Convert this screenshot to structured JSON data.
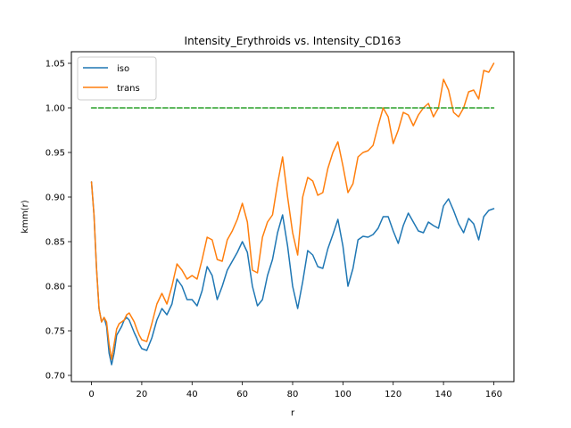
{
  "chart_data": {
    "type": "line",
    "title": "Intensity_Erythroids vs. Intensity_CD163",
    "xlabel": "r",
    "ylabel": "kmm(r)",
    "xlim": [
      -8,
      168
    ],
    "ylim": [
      0.693,
      1.063
    ],
    "x_ticks": [
      0,
      20,
      40,
      60,
      80,
      100,
      120,
      140,
      160
    ],
    "x_tick_labels": [
      "0",
      "20",
      "40",
      "60",
      "80",
      "100",
      "120",
      "140",
      "160"
    ],
    "y_ticks": [
      0.7,
      0.75,
      0.8,
      0.85,
      0.9,
      0.95,
      1.0,
      1.05
    ],
    "y_tick_labels": [
      "0.70",
      "0.75",
      "0.80",
      "0.85",
      "0.90",
      "0.95",
      "1.00",
      "1.05"
    ],
    "grid": false,
    "legend_position": "top-left",
    "series": [
      {
        "name": "iso",
        "color": "#1f77b4",
        "style": "solid",
        "x": [
          0,
          1,
          2,
          3,
          4,
          5,
          6,
          7,
          8,
          9,
          10,
          11,
          12,
          13,
          14,
          15,
          16,
          17,
          18,
          19,
          20,
          22,
          24,
          26,
          28,
          30,
          32,
          34,
          36,
          38,
          40,
          42,
          44,
          46,
          48,
          50,
          52,
          54,
          56,
          58,
          60,
          62,
          64,
          66,
          68,
          70,
          72,
          74,
          76,
          78,
          80,
          82,
          84,
          86,
          88,
          90,
          92,
          94,
          96,
          98,
          100,
          102,
          104,
          106,
          108,
          110,
          112,
          114,
          116,
          118,
          120,
          122,
          124,
          126,
          128,
          130,
          132,
          134,
          136,
          138,
          140,
          142,
          144,
          146,
          148,
          150,
          152,
          154,
          156,
          158,
          160
        ],
        "y": [
          0.917,
          0.88,
          0.82,
          0.775,
          0.76,
          0.765,
          0.755,
          0.725,
          0.712,
          0.725,
          0.745,
          0.75,
          0.755,
          0.762,
          0.765,
          0.762,
          0.755,
          0.748,
          0.742,
          0.735,
          0.73,
          0.728,
          0.742,
          0.762,
          0.775,
          0.768,
          0.78,
          0.808,
          0.8,
          0.785,
          0.785,
          0.778,
          0.795,
          0.822,
          0.812,
          0.785,
          0.8,
          0.818,
          0.828,
          0.838,
          0.85,
          0.838,
          0.8,
          0.778,
          0.785,
          0.812,
          0.83,
          0.86,
          0.88,
          0.845,
          0.8,
          0.775,
          0.805,
          0.84,
          0.835,
          0.822,
          0.82,
          0.842,
          0.858,
          0.875,
          0.845,
          0.8,
          0.82,
          0.852,
          0.856,
          0.855,
          0.858,
          0.865,
          0.878,
          0.878,
          0.862,
          0.848,
          0.868,
          0.882,
          0.872,
          0.862,
          0.86,
          0.872,
          0.868,
          0.865,
          0.89,
          0.898,
          0.885,
          0.87,
          0.86,
          0.876,
          0.87,
          0.852,
          0.878,
          0.885,
          0.887
        ]
      },
      {
        "name": "trans",
        "color": "#ff7f0e",
        "style": "solid",
        "x": [
          0,
          1,
          2,
          3,
          4,
          5,
          6,
          7,
          8,
          9,
          10,
          11,
          12,
          13,
          14,
          15,
          16,
          17,
          18,
          19,
          20,
          22,
          24,
          26,
          28,
          30,
          32,
          34,
          36,
          38,
          40,
          42,
          44,
          46,
          48,
          50,
          52,
          54,
          56,
          58,
          60,
          62,
          64,
          66,
          68,
          70,
          72,
          74,
          76,
          78,
          80,
          82,
          84,
          86,
          88,
          90,
          92,
          94,
          96,
          98,
          100,
          102,
          104,
          106,
          108,
          110,
          112,
          114,
          116,
          118,
          120,
          122,
          124,
          126,
          128,
          130,
          132,
          134,
          136,
          138,
          140,
          142,
          144,
          146,
          148,
          150,
          152,
          154,
          156,
          158,
          160
        ],
        "y": [
          0.917,
          0.88,
          0.82,
          0.775,
          0.76,
          0.765,
          0.76,
          0.735,
          0.718,
          0.735,
          0.752,
          0.758,
          0.76,
          0.762,
          0.768,
          0.77,
          0.765,
          0.76,
          0.752,
          0.745,
          0.74,
          0.738,
          0.758,
          0.78,
          0.792,
          0.78,
          0.8,
          0.825,
          0.818,
          0.808,
          0.812,
          0.808,
          0.83,
          0.855,
          0.852,
          0.83,
          0.828,
          0.852,
          0.862,
          0.875,
          0.893,
          0.872,
          0.818,
          0.815,
          0.855,
          0.872,
          0.88,
          0.915,
          0.945,
          0.9,
          0.86,
          0.835,
          0.9,
          0.922,
          0.918,
          0.902,
          0.905,
          0.932,
          0.95,
          0.962,
          0.935,
          0.905,
          0.915,
          0.945,
          0.95,
          0.952,
          0.958,
          0.98,
          1.0,
          0.99,
          0.96,
          0.975,
          0.995,
          0.992,
          0.98,
          0.992,
          1.0,
          1.005,
          0.99,
          1.0,
          1.032,
          1.02,
          0.995,
          0.99,
          1.0,
          1.018,
          1.02,
          1.01,
          1.042,
          1.04,
          1.05
        ]
      },
      {
        "name": "",
        "color": "#2ca02c",
        "style": "dashed",
        "x": [
          0,
          160
        ],
        "y": [
          1.0,
          1.0
        ]
      }
    ]
  }
}
